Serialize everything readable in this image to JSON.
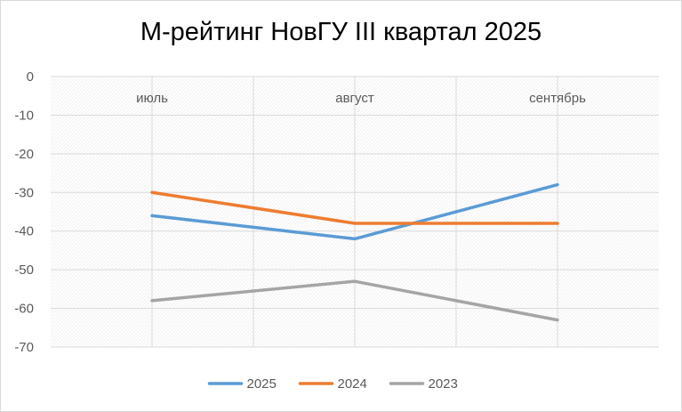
{
  "chart_data": {
    "type": "line",
    "title": "М-рейтинг НовГУ III квартал 2025",
    "xlabel": "",
    "ylabel": "",
    "categories": [
      "июль",
      "август",
      "сентябрь"
    ],
    "ylim": [
      -70,
      0
    ],
    "yticks": [
      0,
      -10,
      -20,
      -30,
      -40,
      -50,
      -60,
      -70
    ],
    "grid": true,
    "legend_position": "bottom",
    "series": [
      {
        "name": "2025",
        "values": [
          -36,
          -42,
          -28
        ],
        "color": "#5b9bd5"
      },
      {
        "name": "2024",
        "values": [
          -30,
          -38,
          -38
        ],
        "color": "#ed7d31"
      },
      {
        "name": "2023",
        "values": [
          -58,
          -53,
          -63
        ],
        "color": "#a5a5a5"
      }
    ]
  }
}
